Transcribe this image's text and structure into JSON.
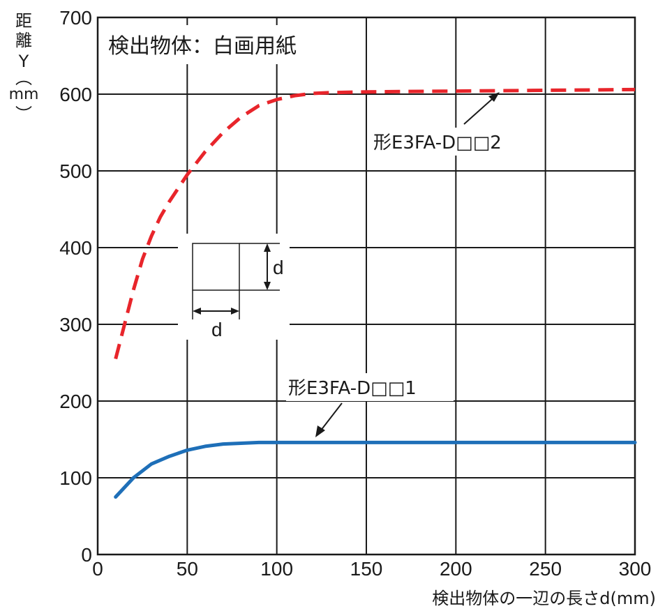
{
  "chart_data": {
    "type": "line",
    "title": "検出物体：白画用紙",
    "xlabel": "検出物体の一辺の長さd(mm)",
    "ylabel_chars": [
      "距",
      "離",
      "Y",
      "︵",
      "mm",
      "︶"
    ],
    "xlim": [
      0,
      300
    ],
    "ylim": [
      0,
      700
    ],
    "x_ticks": [
      0,
      50,
      100,
      150,
      200,
      250,
      300
    ],
    "y_ticks": [
      0,
      100,
      200,
      300,
      400,
      500,
      600,
      700
    ],
    "grid": true,
    "colors": {
      "series_2": "#e8252b",
      "series_1": "#1e6fb8",
      "grid": "#1a1a1a"
    },
    "series": [
      {
        "name": "形E3FA-D□□2",
        "style": "dashed",
        "x": [
          10,
          15,
          20,
          25,
          30,
          35,
          40,
          50,
          60,
          70,
          80,
          90,
          100,
          110,
          120,
          130,
          150,
          200,
          250,
          300
        ],
        "y": [
          255,
          300,
          345,
          385,
          415,
          440,
          460,
          495,
          525,
          550,
          570,
          585,
          593,
          598,
          601,
          602,
          603,
          604,
          605,
          606
        ]
      },
      {
        "name": "形E3FA-D□□1",
        "style": "solid",
        "x": [
          10,
          20,
          30,
          40,
          50,
          60,
          70,
          80,
          90,
          100,
          120,
          150,
          200,
          250,
          300
        ],
        "y": [
          75,
          100,
          118,
          128,
          136,
          141,
          144,
          145,
          146,
          146,
          146,
          146,
          146,
          146,
          146
        ]
      }
    ],
    "annotations": {
      "series_2_label": "形E3FA-D□□2",
      "series_1_label": "形E3FA-D□□1",
      "inset_dim_label_vertical": "d",
      "inset_dim_label_horizontal": "d"
    }
  }
}
